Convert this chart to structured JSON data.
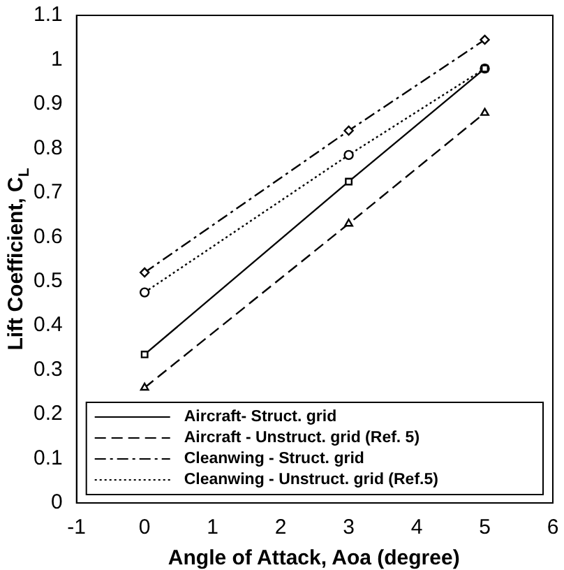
{
  "chart_data": {
    "type": "line",
    "xlabel": "Angle of Attack, Aoa (degree)",
    "ylabel": "Lift Coefficient, C$_{L}$",
    "x": [
      0,
      3,
      5
    ],
    "xlim": [
      -1,
      6
    ],
    "xticks": [
      -1,
      0,
      1,
      2,
      3,
      4,
      5,
      6
    ],
    "ylim": [
      0,
      1.1
    ],
    "yticks": [
      0,
      0.1,
      0.2,
      0.3,
      0.4,
      0.5,
      0.6,
      0.7,
      0.8,
      0.9,
      1,
      1.1
    ],
    "grid": false,
    "legend": "bottom",
    "series": [
      {
        "name": "Aircraft- Struct. grid",
        "color": "#000000",
        "values": [
          0.335,
          0.725,
          0.98
        ],
        "marker": "square",
        "line_style": "solid"
      },
      {
        "name": "Aircraft - Unstruct. grid (Ref. 5)",
        "color": "#000000",
        "values": [
          0.26,
          0.63,
          0.88
        ],
        "marker": "triangle",
        "line_style": "dashed"
      },
      {
        "name": "Cleanwing - Struct. grid",
        "color": "#000000",
        "values": [
          0.52,
          0.84,
          1.045
        ],
        "marker": "diamond",
        "line_style": "dashdot"
      },
      {
        "name": "Cleanwing - Unstruct. grid (Ref.5)",
        "color": "#000000",
        "values": [
          0.475,
          0.785,
          0.98
        ],
        "marker": "circle",
        "line_style": "dotted"
      }
    ]
  }
}
